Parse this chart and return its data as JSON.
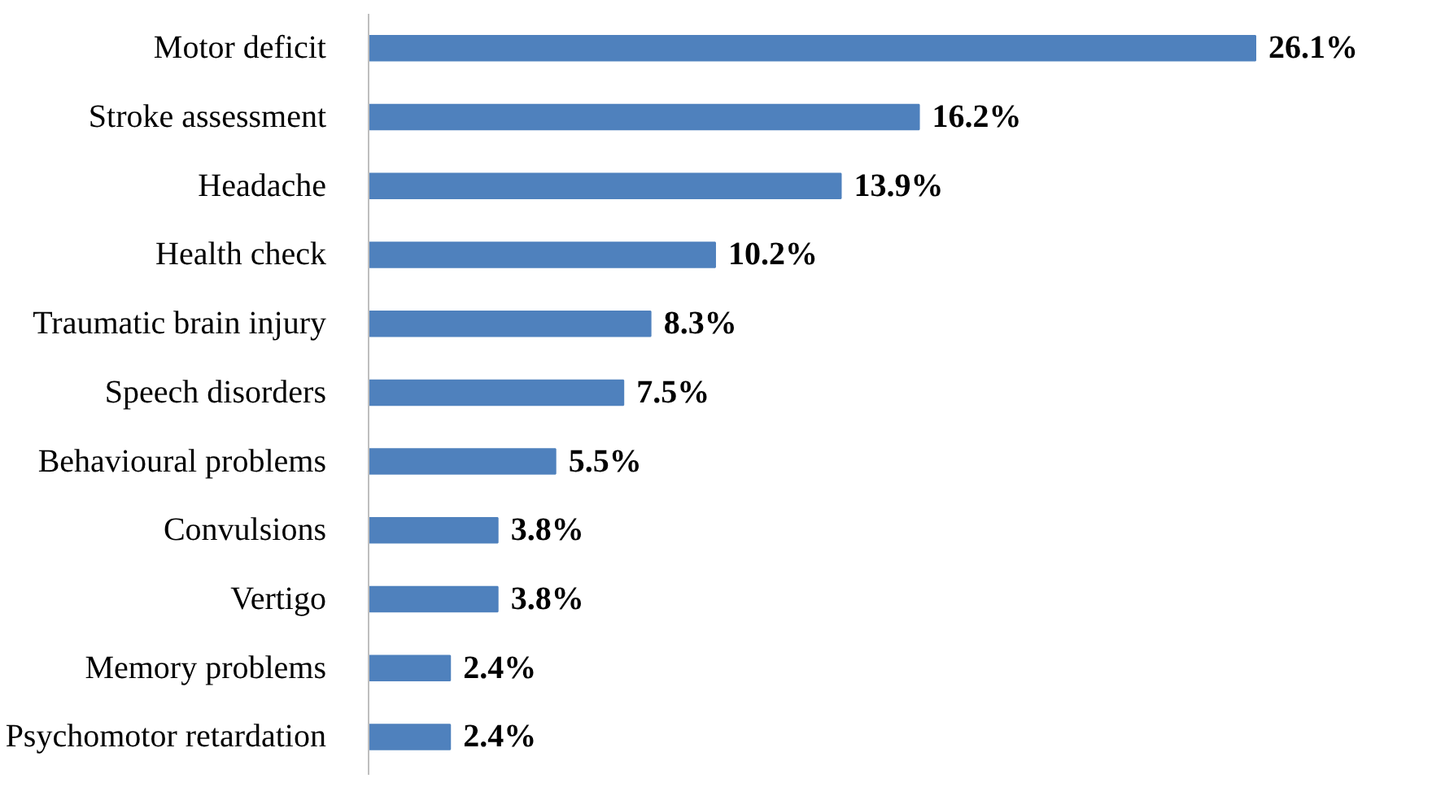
{
  "chart_data": {
    "type": "bar",
    "orientation": "horizontal",
    "categories": [
      "Motor deficit",
      "Stroke assessment",
      "Headache",
      "Health check",
      "Traumatic brain injury",
      "Speech disorders",
      "Behavioural problems",
      "Convulsions",
      "Vertigo",
      "Memory problems",
      "Psychomotor retardation"
    ],
    "values": [
      26.1,
      16.2,
      13.9,
      10.2,
      8.3,
      7.5,
      5.5,
      3.8,
      3.8,
      2.4,
      2.4
    ],
    "value_labels": [
      "26.1%",
      "16.2%",
      "13.9%",
      "10.2%",
      "8.3%",
      "7.5%",
      "5.5%",
      "3.8%",
      "3.8%",
      "2.4%",
      "2.4%"
    ],
    "color": "#4f81bd",
    "grid": false
  }
}
